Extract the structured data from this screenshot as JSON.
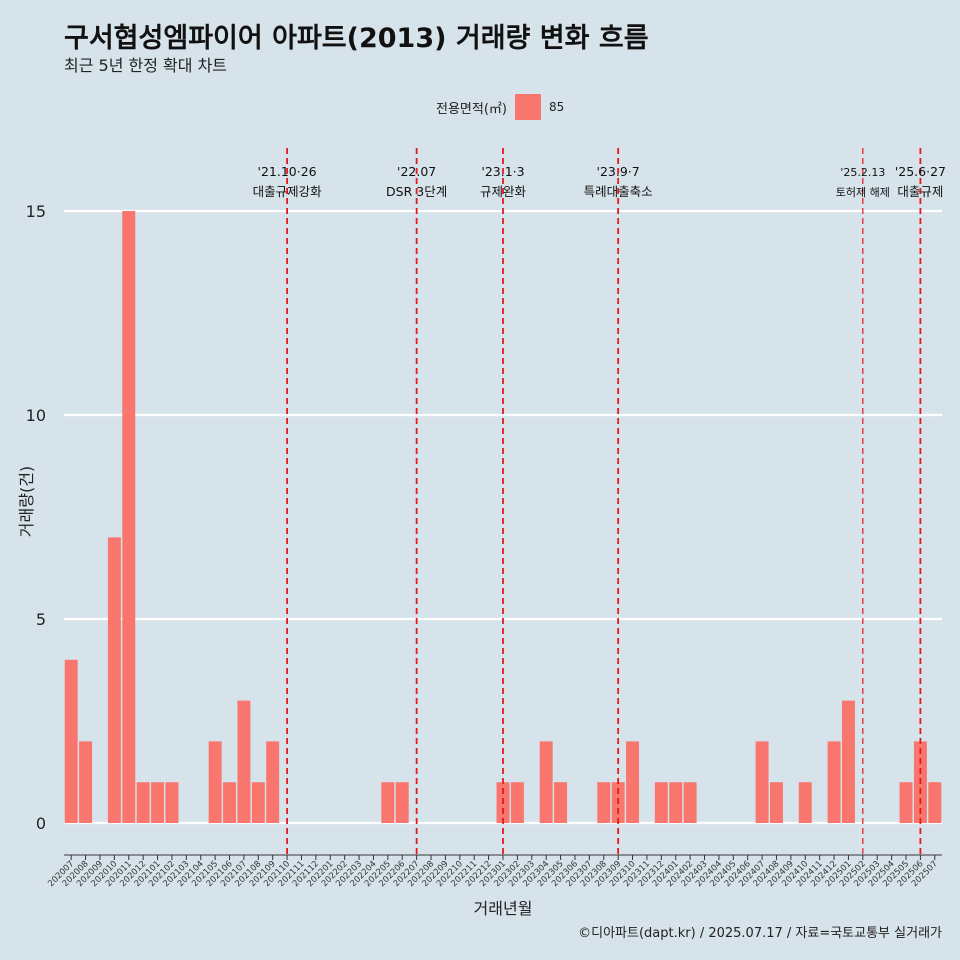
{
  "title": "구서협성엠파이어 아파트(2013) 거래량 변화 흐름",
  "subtitle": "최근 5년 한정 확대 차트",
  "legend": {
    "title": "전용면적(㎡)",
    "items": [
      {
        "label": "85",
        "color": "#f8766d"
      }
    ]
  },
  "caption": "©디아파트(dapt.kr) / 2025.07.17 / 자료=국토교통부 실거래가",
  "colors": {
    "background": "#d7e3ea",
    "bar": "#f8766d",
    "grid": "#ffffff",
    "event_line": "#e31a1c"
  },
  "chart_data": {
    "type": "bar",
    "title": "구서협성엠파이어 아파트(2013) 거래량 변화 흐름",
    "subtitle": "최근 5년 한정 확대 차트",
    "xlabel": "거래년월",
    "ylabel": "거래량(건)",
    "ylim": [
      0,
      15
    ],
    "yticks": [
      0,
      5,
      10,
      15
    ],
    "grid": true,
    "legend_position": "top",
    "categories": [
      "202007",
      "202008",
      "202009",
      "202010",
      "202011",
      "202012",
      "202101",
      "202102",
      "202103",
      "202104",
      "202105",
      "202106",
      "202107",
      "202108",
      "202109",
      "202110",
      "202111",
      "202112",
      "202201",
      "202202",
      "202203",
      "202204",
      "202205",
      "202206",
      "202207",
      "202208",
      "202209",
      "202210",
      "202211",
      "202212",
      "202301",
      "202302",
      "202303",
      "202304",
      "202305",
      "202306",
      "202307",
      "202308",
      "202309",
      "202310",
      "202311",
      "202312",
      "202401",
      "202402",
      "202403",
      "202404",
      "202405",
      "202406",
      "202407",
      "202408",
      "202409",
      "202410",
      "202411",
      "202412",
      "202501",
      "202502",
      "202503",
      "202504",
      "202505",
      "202506",
      "202507"
    ],
    "series": [
      {
        "name": "85",
        "color": "#f8766d",
        "values": [
          4,
          2,
          0,
          7,
          15,
          1,
          1,
          1,
          0,
          0,
          2,
          1,
          3,
          1,
          2,
          0,
          0,
          0,
          0,
          0,
          0,
          0,
          1,
          1,
          0,
          0,
          0,
          0,
          0,
          0,
          1,
          1,
          0,
          2,
          1,
          0,
          0,
          1,
          1,
          2,
          0,
          1,
          1,
          1,
          0,
          0,
          0,
          0,
          2,
          1,
          0,
          1,
          0,
          2,
          3,
          0,
          0,
          0,
          1,
          2,
          1
        ]
      }
    ],
    "events": [
      {
        "month": "202110",
        "date": "'21.10·26",
        "label": "대출규제강화"
      },
      {
        "month": "202207",
        "date": "'22.07",
        "label": "DSR 3단계"
      },
      {
        "month": "202301",
        "date": "'23.1·3",
        "label": "규제완화"
      },
      {
        "month": "202309",
        "date": "'23.9·7",
        "label": "특례대출축소"
      },
      {
        "month": "202502",
        "date": "'25.2.13",
        "label": "토허제 해제"
      },
      {
        "month": "202506",
        "date": "'25.6·27",
        "label": "대출규제"
      }
    ]
  }
}
